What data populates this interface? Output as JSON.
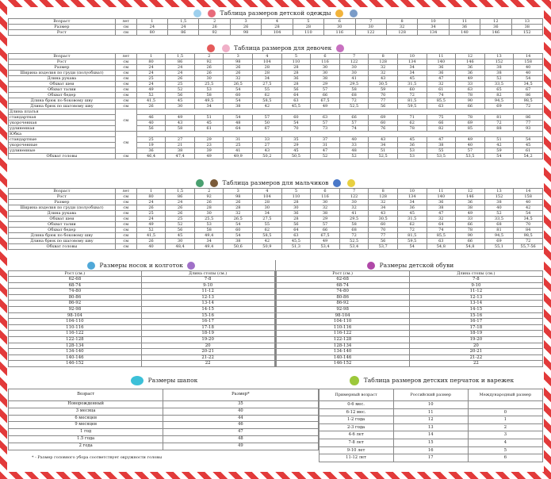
{
  "kids": {
    "title": "Таблица размеров детской одежды",
    "rows": [
      [
        "Возраст",
        "лет",
        "1",
        "1,5",
        "2",
        "3",
        "4",
        "5",
        "6",
        "7",
        "8",
        "10",
        "11",
        "12",
        "13"
      ],
      [
        "Размер",
        "см",
        "24",
        "24",
        "26",
        "26",
        "28",
        "28",
        "30",
        "30",
        "32",
        "34",
        "36",
        "36",
        "38"
      ],
      [
        "Рост",
        "см",
        "80",
        "86",
        "92",
        "98",
        "104",
        "110",
        "116",
        "122",
        "128",
        "134",
        "140",
        "146",
        "152"
      ]
    ]
  },
  "girls": {
    "title": "Таблица размеров для девочек",
    "rows": [
      [
        "Возраст",
        "лет",
        "1",
        "1,5",
        "2",
        "3",
        "4",
        "5",
        "6",
        "7",
        "8",
        "10",
        "11",
        "12",
        "13",
        "14"
      ],
      [
        "Рост",
        "см",
        "80",
        "86",
        "92",
        "98",
        "104",
        "110",
        "116",
        "122",
        "128",
        "134",
        "140",
        "146",
        "152",
        "158"
      ],
      [
        "Размер",
        "см",
        "24",
        "24",
        "26",
        "26",
        "28",
        "28",
        "30",
        "30",
        "32",
        "34",
        "36",
        "36",
        "38",
        "40"
      ],
      [
        "Ширина изделия по груди (полуобхват)",
        "см",
        "24",
        "24",
        "26",
        "26",
        "28",
        "28",
        "30",
        "30",
        "32",
        "34",
        "36",
        "36",
        "38",
        "40"
      ],
      [
        "Длина рукава",
        "см",
        "25",
        "26",
        "30",
        "32",
        "34",
        "36",
        "38",
        "41",
        "43",
        "45",
        "47",
        "49",
        "52",
        "54"
      ],
      [
        "Обхват шеи",
        "см",
        "24",
        "25",
        "25,5",
        "26,5",
        "27,5",
        "28",
        "29",
        "29,5",
        "30,5",
        "31,5",
        "32",
        "33",
        "33,5",
        "34,5"
      ],
      [
        "Обхват талии",
        "см",
        "49",
        "52",
        "53",
        "54",
        "55",
        "56",
        "57",
        "58",
        "59",
        "60",
        "61",
        "63",
        "65",
        "67"
      ],
      [
        "Обхват бедер",
        "см",
        "52",
        "56",
        "58",
        "60",
        "62",
        "64",
        "66",
        "68",
        "70",
        "72",
        "74",
        "78",
        "82",
        "86"
      ],
      [
        "Длина брюк по боковому шву",
        "см",
        "41,5",
        "45",
        "49,5",
        "54",
        "58,5",
        "63",
        "67,5",
        "72",
        "77",
        "81,5",
        "85,5",
        "90",
        "94,5",
        "98,5"
      ],
      [
        "Длина брюк по шаговому шву",
        "см",
        "26",
        "30",
        "34",
        "38",
        "42",
        "45,5",
        "49",
        "52,5",
        "56",
        "59,5",
        "63",
        "66",
        "69",
        "72"
      ]
    ],
    "dress": {
      "label": "Длина платья",
      "unit": "см",
      "sub": [
        "стандартная",
        "укороченная",
        "удлиненная"
      ],
      "rows": [
        [
          "46",
          "49",
          "51",
          "54",
          "57",
          "60",
          "63",
          "66",
          "69",
          "71",
          "75",
          "78",
          "81",
          "86"
        ],
        [
          "40",
          "43",
          "45",
          "48",
          "50",
          "54",
          "57",
          "57",
          "60",
          "62",
          "66",
          "69",
          "72",
          "77"
        ],
        [
          "56",
          "58",
          "61",
          "64",
          "67",
          "70",
          "73",
          "74",
          "76",
          "78",
          "82",
          "85",
          "88",
          "93"
        ]
      ]
    },
    "skirt": {
      "label": "Юбка",
      "unit": "см",
      "sub": [
        "стандартные",
        "укороченные",
        "удлиненные"
      ],
      "rows": [
        [
          "25",
          "27",
          "29",
          "31",
          "33",
          "35",
          "37",
          "40",
          "43",
          "45",
          "47",
          "49",
          "51",
          "54"
        ],
        [
          "19",
          "21",
          "23",
          "25",
          "27",
          "29",
          "31",
          "33",
          "34",
          "36",
          "38",
          "40",
          "42",
          "45"
        ],
        [
          "36",
          "38",
          "39",
          "41",
          "43",
          "45",
          "47",
          "48",
          "51",
          "53",
          "55",
          "57",
          "59",
          "61"
        ]
      ]
    },
    "head": [
      "Обхват головы",
      "см",
      "46,4",
      "47,4",
      "49",
      "49,9",
      "50,2",
      "50,5",
      "52",
      "52",
      "52,5",
      "53",
      "53,5",
      "53,5",
      "54",
      "54,2"
    ]
  },
  "boys": {
    "title": "Таблица размеров для мальчиков",
    "rows": [
      [
        "Возраст",
        "лет",
        "1",
        "1,5",
        "2",
        "3",
        "4",
        "5",
        "6",
        "7",
        "8",
        "10",
        "11",
        "12",
        "13",
        "14"
      ],
      [
        "Рост",
        "см",
        "80",
        "86",
        "92",
        "98",
        "104",
        "110",
        "116",
        "122",
        "128",
        "134",
        "140",
        "146",
        "152",
        "158"
      ],
      [
        "Размер",
        "см",
        "24",
        "24",
        "26",
        "26",
        "28",
        "28",
        "30",
        "30",
        "32",
        "34",
        "36",
        "36",
        "38",
        "40"
      ],
      [
        "Ширина изделия по груди (полуобхват)",
        "см",
        "26",
        "26",
        "28",
        "28",
        "30",
        "30",
        "32",
        "32",
        "34",
        "36",
        "38",
        "38",
        "40",
        "42"
      ],
      [
        "Длина рукава",
        "см",
        "25",
        "26",
        "30",
        "32",
        "34",
        "36",
        "38",
        "41",
        "43",
        "45",
        "47",
        "49",
        "52",
        "54"
      ],
      [
        "Обхват шеи",
        "см",
        "24",
        "25",
        "25,5",
        "26,5",
        "27,5",
        "28",
        "29",
        "29,5",
        "30,5",
        "31,5",
        "32",
        "33",
        "33,5",
        "34,5"
      ],
      [
        "Обхват талии",
        "см",
        "49",
        "52",
        "53",
        "54",
        "55",
        "56",
        "57",
        "58",
        "60",
        "62",
        "64",
        "66",
        "68",
        "70"
      ],
      [
        "Обхват бедер",
        "см",
        "52",
        "56",
        "58",
        "60",
        "62",
        "64",
        "66",
        "68",
        "70",
        "72",
        "74",
        "78",
        "81",
        "84"
      ],
      [
        "Длина брюк по боковому шву",
        "см",
        "41,5",
        "45",
        "49,4",
        "54",
        "58,5",
        "63",
        "67,5",
        "72",
        "77",
        "81,5",
        "85,5",
        "90",
        "94,5",
        "98,5"
      ],
      [
        "Длина брюк по шаговому шву",
        "см",
        "26",
        "30",
        "34",
        "38",
        "42",
        "45,5",
        "49",
        "52,5",
        "56",
        "59,5",
        "63",
        "66",
        "69",
        "72"
      ],
      [
        "Обхват головы",
        "см",
        "40",
        "48,4",
        "49,4",
        "50,6",
        "50,9",
        "51,3",
        "53,4",
        "53,4",
        "53,7",
        "54",
        "54,8",
        "54,8",
        "55,1",
        "55,7-56"
      ]
    ]
  },
  "socks": {
    "title": "Размеры носок и колготок",
    "h1": "Рост (см.)",
    "h2": "Длина стопы (см.)",
    "rows": [
      [
        "62-68",
        "7-8"
      ],
      [
        "68-74",
        "9-10"
      ],
      [
        "74-80",
        "11-12"
      ],
      [
        "80-86",
        "12-13"
      ],
      [
        "86-92",
        "13-14"
      ],
      [
        "92-98",
        "14-15"
      ],
      [
        "98-104",
        "15-16"
      ],
      [
        "104-110",
        "16-17"
      ],
      [
        "110-116",
        "17-18"
      ],
      [
        "116-122",
        "18-19"
      ],
      [
        "122-128",
        "19-20"
      ],
      [
        "128-134",
        "20"
      ],
      [
        "134-140",
        "20-21"
      ],
      [
        "140-146",
        "21-22"
      ],
      [
        "146-152",
        "22"
      ]
    ]
  },
  "shoes": {
    "title": "Размеры детской обуви",
    "h1": "Рост (см.)",
    "h2": "Длина стопы (см.)",
    "rows": [
      [
        "62-68",
        "7-8"
      ],
      [
        "68-74",
        "9-10"
      ],
      [
        "74-80",
        "11-12"
      ],
      [
        "80-86",
        "12-13"
      ],
      [
        "86-92",
        "13-14"
      ],
      [
        "92-98",
        "14-15"
      ],
      [
        "98-104",
        "15-16"
      ],
      [
        "104-110",
        "16-17"
      ],
      [
        "110-116",
        "17-18"
      ],
      [
        "116-122",
        "18-19"
      ],
      [
        "122-128",
        "19-20"
      ],
      [
        "128-134",
        "20"
      ],
      [
        "134-140",
        "20-21"
      ],
      [
        "140-146",
        "21-22"
      ],
      [
        "146-152",
        "22"
      ]
    ]
  },
  "hats": {
    "title": "Размеры шапок",
    "h1": "Возраст",
    "h2": "Размер*",
    "rows": [
      [
        "Новорожденный",
        "35"
      ],
      [
        "3 месяца",
        "40"
      ],
      [
        "6 месяцев",
        "44"
      ],
      [
        "9 месяцев",
        "46"
      ],
      [
        "1 год",
        "47"
      ],
      [
        "1.5 года",
        "48"
      ],
      [
        "2 года",
        "49"
      ]
    ],
    "note": "* - Размер головного убора соответствует окружности головы"
  },
  "gloves": {
    "title": "Таблица размеров детских перчаток и варежек",
    "h1": "Примерный возраст",
    "h2": "Российский размер",
    "h3": "Международный размер",
    "rows": [
      [
        "0-6 мес.",
        "10",
        ""
      ],
      [
        "6-12 мес.",
        "11",
        "0"
      ],
      [
        "1-2 года",
        "12",
        "1"
      ],
      [
        "2-3 года",
        "13",
        "2"
      ],
      [
        "4-6 лет",
        "14",
        "3"
      ],
      [
        "7-8 лет",
        "15",
        "4"
      ],
      [
        "9-10 лет",
        "16",
        "5"
      ],
      [
        "11-12 лет",
        "17",
        "6"
      ]
    ]
  }
}
